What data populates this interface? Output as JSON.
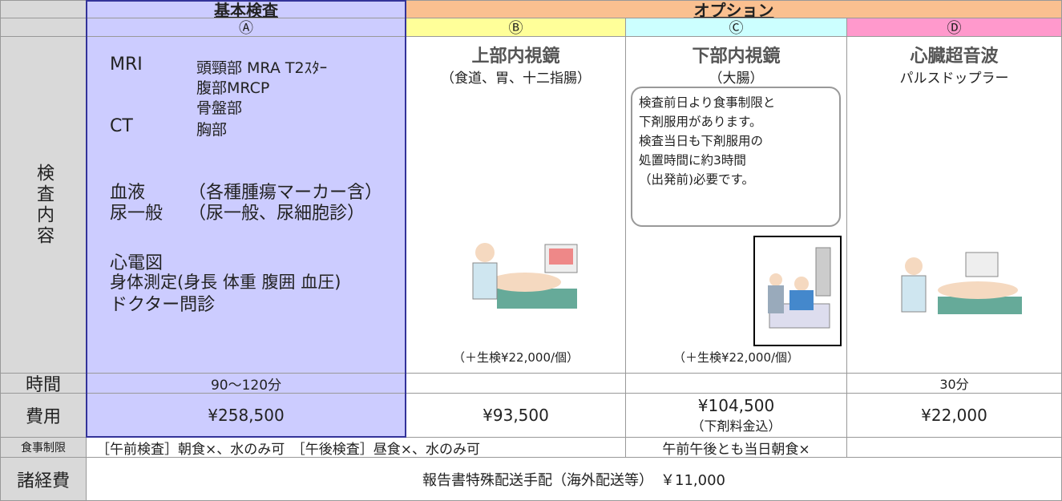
{
  "header": {
    "basic_exam": "基本検査",
    "options": "オプション",
    "labels": [
      "Ⓐ",
      "Ⓑ",
      "Ⓒ",
      "Ⓓ"
    ]
  },
  "exam_content": {
    "label": "検査内容",
    "a_items": [
      [
        "MRI",
        "頭頸部 MRA T2ｽﾀｰ"
      ],
      [
        "腹部MRCP"
      ],
      [
        "骨盤部"
      ],
      [
        "CT",
        "胸部"
      ],
      [
        "血液",
        "（各種腫瘍マーカー含）"
      ],
      [
        "尿一般",
        "（尿一般、尿細胞診）"
      ],
      [
        "心電図"
      ],
      [
        "身体測定(身長 体重 腹囲 血圧)"
      ],
      [
        "ドクター問診"
      ]
    ],
    "b": {
      "title": "上部内視鏡",
      "subtitle": "（食道、胃、十二指腸）",
      "note": "（＋生検¥22,000/個）"
    },
    "c": {
      "title": "下部内視鏡",
      "subtitle": "（大腸）",
      "callout": [
        "検査前日より食事制限と",
        "下剤服用があります。",
        "検査当日も下剤服用の",
        "処置時間に約3時間",
        "（出発前)必要です。"
      ],
      "note": "（＋生検¥22,000/個）"
    },
    "d": {
      "title": "心臓超音波",
      "subtitle": "パルスドップラー"
    }
  },
  "time": {
    "label": "時間",
    "a": "90〜120分",
    "d": "30分"
  },
  "cost": {
    "label": "費用",
    "a": "¥258,500",
    "b": "¥93,500",
    "c": [
      "¥104,500",
      "（下剤料金込）"
    ],
    "d": "¥22,000"
  },
  "diet": {
    "label": "食事制限",
    "ab": "［午前検査］朝食×、水のみ可　［午後検査］昼食×、水のみ可",
    "c": "午前午後とも当日朝食×"
  },
  "expenses": {
    "label": "諸経費",
    "text": "報告書特殊配送手配（海外配送等）　￥11,000"
  }
}
